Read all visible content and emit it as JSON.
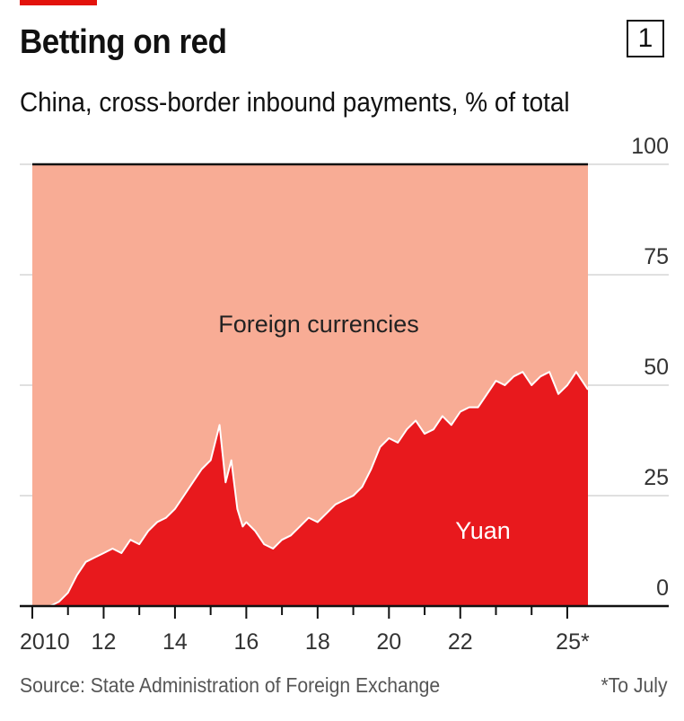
{
  "header": {
    "title": "Betting on red",
    "chart_number": "1",
    "subtitle": "China, cross-border inbound payments, % of total"
  },
  "footer": {
    "source": "Source: State Administration of Foreign Exchange",
    "note": "*To July"
  },
  "colors": {
    "yuan": "#e8191d",
    "foreign_currencies": "#f8ac95",
    "brand_bar": "#e3120b"
  },
  "chart_data": {
    "type": "area",
    "title": "Betting on red",
    "subtitle": "China, cross-border inbound payments, % of total",
    "xlabel": "",
    "ylabel": "",
    "xlim": [
      2010,
      2025.58
    ],
    "ylim": [
      0,
      100
    ],
    "y_ticks": [
      0,
      25,
      50,
      75,
      100
    ],
    "y_axis_position": "right",
    "grid": true,
    "x_ticks": [
      {
        "value": 2010,
        "label": "2010"
      },
      {
        "value": 2012,
        "label": "12"
      },
      {
        "value": 2014,
        "label": "14"
      },
      {
        "value": 2016,
        "label": "16"
      },
      {
        "value": 2018,
        "label": "18"
      },
      {
        "value": 2020,
        "label": "20"
      },
      {
        "value": 2022,
        "label": "22"
      },
      {
        "value": 2025,
        "label": "25*"
      }
    ],
    "labels": {
      "foreign": "Foreign currencies",
      "yuan": "Yuan"
    },
    "series": [
      {
        "name": "Yuan",
        "x": [
          2010.0,
          2010.5,
          2010.75,
          2011.0,
          2011.25,
          2011.5,
          2011.75,
          2012.0,
          2012.25,
          2012.5,
          2012.75,
          2013.0,
          2013.25,
          2013.5,
          2013.75,
          2014.0,
          2014.25,
          2014.5,
          2014.75,
          2015.0,
          2015.25,
          2015.42,
          2015.58,
          2015.75,
          2015.9,
          2016.0,
          2016.25,
          2016.5,
          2016.75,
          2017.0,
          2017.25,
          2017.5,
          2017.75,
          2018.0,
          2018.25,
          2018.5,
          2018.75,
          2019.0,
          2019.25,
          2019.5,
          2019.75,
          2020.0,
          2020.25,
          2020.5,
          2020.75,
          2021.0,
          2021.25,
          2021.5,
          2021.75,
          2022.0,
          2022.25,
          2022.5,
          2022.75,
          2023.0,
          2023.25,
          2023.5,
          2023.75,
          2024.0,
          2024.25,
          2024.5,
          2024.75,
          2025.0,
          2025.25,
          2025.58
        ],
        "values": [
          0,
          0,
          1,
          3,
          7,
          10,
          11,
          12,
          13,
          12,
          15,
          14,
          17,
          19,
          20,
          22,
          25,
          28,
          31,
          33,
          41,
          28,
          33,
          22,
          18,
          19,
          17,
          14,
          13,
          15,
          16,
          18,
          20,
          19,
          21,
          23,
          24,
          25,
          27,
          31,
          36,
          38,
          37,
          40,
          42,
          39,
          40,
          43,
          41,
          44,
          45,
          45,
          48,
          51,
          50,
          52,
          53,
          50,
          52,
          53,
          48,
          50,
          53,
          49
        ]
      },
      {
        "name": "Foreign currencies",
        "note": "remainder to 100"
      }
    ]
  }
}
